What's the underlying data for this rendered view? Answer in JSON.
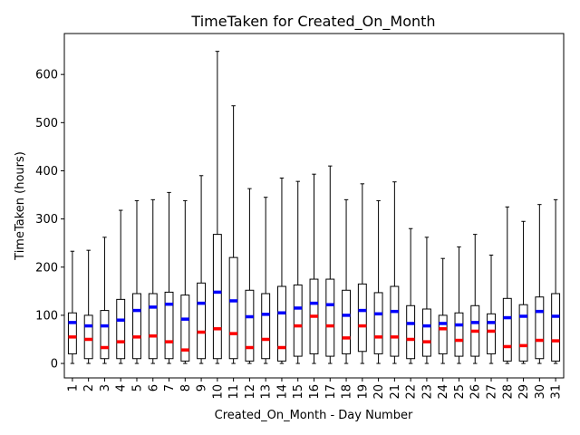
{
  "chart_data": {
    "type": "box",
    "title": "TimeTaken for Created_On_Month",
    "xlabel": "Created_On_Month - Day Number",
    "ylabel": "TimeTaken (hours)",
    "ylim": [
      -30,
      685
    ],
    "yticks": [
      0,
      100,
      200,
      300,
      400,
      500,
      600
    ],
    "categories": [
      "1",
      "2",
      "3",
      "4",
      "5",
      "6",
      "7",
      "8",
      "9",
      "10",
      "11",
      "12",
      "13",
      "14",
      "15",
      "16",
      "17",
      "18",
      "19",
      "20",
      "21",
      "22",
      "23",
      "24",
      "25",
      "26",
      "27",
      "28",
      "29",
      "30",
      "31"
    ],
    "colors": {
      "box": "#000000",
      "median": "#ff0000",
      "mean": "#0000ff"
    },
    "series": [
      {
        "cat": "1",
        "min": 0,
        "q1": 20,
        "median": 55,
        "mean": 85,
        "q3": 105,
        "max": 233
      },
      {
        "cat": "2",
        "min": 0,
        "q1": 10,
        "median": 50,
        "mean": 78,
        "q3": 100,
        "max": 235
      },
      {
        "cat": "3",
        "min": 0,
        "q1": 10,
        "median": 33,
        "mean": 78,
        "q3": 110,
        "max": 262
      },
      {
        "cat": "4",
        "min": 0,
        "q1": 10,
        "median": 45,
        "mean": 90,
        "q3": 133,
        "max": 318
      },
      {
        "cat": "5",
        "min": 0,
        "q1": 10,
        "median": 55,
        "mean": 110,
        "q3": 145,
        "max": 338
      },
      {
        "cat": "6",
        "min": 0,
        "q1": 10,
        "median": 57,
        "mean": 117,
        "q3": 145,
        "max": 340
      },
      {
        "cat": "7",
        "min": 0,
        "q1": 10,
        "median": 45,
        "mean": 123,
        "q3": 148,
        "max": 355
      },
      {
        "cat": "8",
        "min": 0,
        "q1": 5,
        "median": 28,
        "mean": 92,
        "q3": 142,
        "max": 338
      },
      {
        "cat": "9",
        "min": 0,
        "q1": 10,
        "median": 65,
        "mean": 125,
        "q3": 167,
        "max": 390
      },
      {
        "cat": "10",
        "min": 0,
        "q1": 10,
        "median": 72,
        "mean": 148,
        "q3": 268,
        "max": 648
      },
      {
        "cat": "11",
        "min": 0,
        "q1": 10,
        "median": 62,
        "mean": 130,
        "q3": 220,
        "max": 535
      },
      {
        "cat": "12",
        "min": 0,
        "q1": 5,
        "median": 33,
        "mean": 97,
        "q3": 152,
        "max": 363
      },
      {
        "cat": "13",
        "min": 0,
        "q1": 10,
        "median": 50,
        "mean": 102,
        "q3": 145,
        "max": 345
      },
      {
        "cat": "14",
        "min": 0,
        "q1": 5,
        "median": 33,
        "mean": 105,
        "q3": 160,
        "max": 385
      },
      {
        "cat": "15",
        "min": 0,
        "q1": 15,
        "median": 78,
        "mean": 115,
        "q3": 163,
        "max": 378
      },
      {
        "cat": "16",
        "min": 0,
        "q1": 20,
        "median": 98,
        "mean": 125,
        "q3": 175,
        "max": 393
      },
      {
        "cat": "17",
        "min": 0,
        "q1": 15,
        "median": 78,
        "mean": 122,
        "q3": 175,
        "max": 410
      },
      {
        "cat": "18",
        "min": 0,
        "q1": 20,
        "median": 53,
        "mean": 100,
        "q3": 152,
        "max": 340
      },
      {
        "cat": "19",
        "min": 0,
        "q1": 25,
        "median": 78,
        "mean": 110,
        "q3": 165,
        "max": 373
      },
      {
        "cat": "20",
        "min": 0,
        "q1": 20,
        "median": 55,
        "mean": 103,
        "q3": 147,
        "max": 338
      },
      {
        "cat": "21",
        "min": 0,
        "q1": 15,
        "median": 55,
        "mean": 108,
        "q3": 160,
        "max": 377
      },
      {
        "cat": "22",
        "min": 0,
        "q1": 10,
        "median": 50,
        "mean": 83,
        "q3": 120,
        "max": 280
      },
      {
        "cat": "23",
        "min": 0,
        "q1": 15,
        "median": 45,
        "mean": 78,
        "q3": 113,
        "max": 262
      },
      {
        "cat": "24",
        "min": 0,
        "q1": 20,
        "median": 72,
        "mean": 83,
        "q3": 100,
        "max": 218
      },
      {
        "cat": "25",
        "min": 0,
        "q1": 15,
        "median": 48,
        "mean": 80,
        "q3": 105,
        "max": 242
      },
      {
        "cat": "26",
        "min": 0,
        "q1": 15,
        "median": 67,
        "mean": 85,
        "q3": 120,
        "max": 268
      },
      {
        "cat": "27",
        "min": 0,
        "q1": 20,
        "median": 67,
        "mean": 85,
        "q3": 103,
        "max": 225
      },
      {
        "cat": "28",
        "min": 0,
        "q1": 5,
        "median": 35,
        "mean": 95,
        "q3": 135,
        "max": 325
      },
      {
        "cat": "29",
        "min": 0,
        "q1": 5,
        "median": 37,
        "mean": 98,
        "q3": 122,
        "max": 295
      },
      {
        "cat": "30",
        "min": 0,
        "q1": 10,
        "median": 48,
        "mean": 108,
        "q3": 138,
        "max": 330
      },
      {
        "cat": "31",
        "min": 0,
        "q1": 5,
        "median": 47,
        "mean": 98,
        "q3": 145,
        "max": 340
      }
    ]
  }
}
